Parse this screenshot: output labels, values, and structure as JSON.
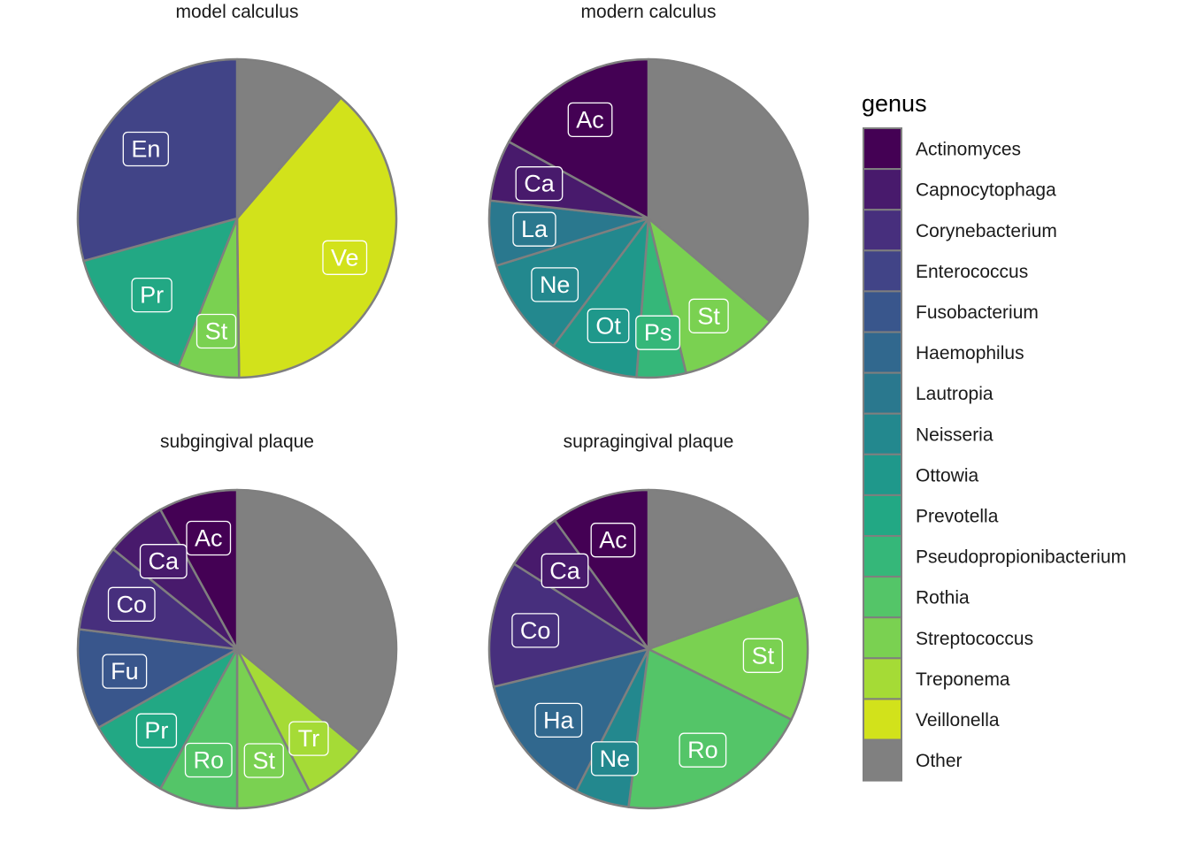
{
  "chart_data": {
    "type": "pie",
    "legend": {
      "title": "genus",
      "placement": "right",
      "entries": [
        {
          "name": "Actinomyces",
          "color": "#440154"
        },
        {
          "name": "Capnocytophaga",
          "color": "#481A6C"
        },
        {
          "name": "Corynebacterium",
          "color": "#472F7D"
        },
        {
          "name": "Enterococcus",
          "color": "#414487"
        },
        {
          "name": "Fusobacterium",
          "color": "#39568C"
        },
        {
          "name": "Haemophilus",
          "color": "#31688E"
        },
        {
          "name": "Lautropia",
          "color": "#2A788E"
        },
        {
          "name": "Neisseria",
          "color": "#23888E"
        },
        {
          "name": "Ottowia",
          "color": "#1F988B"
        },
        {
          "name": "Prevotella",
          "color": "#22A884"
        },
        {
          "name": "Pseudopropionibacterium",
          "color": "#35B779"
        },
        {
          "name": "Rothia",
          "color": "#54C568"
        },
        {
          "name": "Streptococcus",
          "color": "#7AD151"
        },
        {
          "name": "Treponema",
          "color": "#A5DB36"
        },
        {
          "name": "Veillonella",
          "color": "#D2E21B"
        },
        {
          "name": "Other",
          "color": "#808080"
        }
      ]
    },
    "panels": [
      {
        "title": "model  calculus",
        "slices": [
          {
            "genus": "Other",
            "value": 11.3
          },
          {
            "genus": "Veillonella",
            "value": 38.5,
            "label": "Ve"
          },
          {
            "genus": "Streptococcus",
            "value": 6.2,
            "label": "St"
          },
          {
            "genus": "Prevotella",
            "value": 14.7,
            "label": "Pr"
          },
          {
            "genus": "Enterococcus",
            "value": 29.3,
            "label": "En"
          }
        ]
      },
      {
        "title": "modern  calculus",
        "slices": [
          {
            "genus": "Other",
            "value": 36.2
          },
          {
            "genus": "Streptococcus",
            "value": 10.0,
            "label": "St"
          },
          {
            "genus": "Pseudopropionibacterium",
            "value": 5.0,
            "label": "Ps"
          },
          {
            "genus": "Ottowia",
            "value": 9.0,
            "label": "Ot"
          },
          {
            "genus": "Neisseria",
            "value": 10.0,
            "label": "Ne"
          },
          {
            "genus": "Lautropia",
            "value": 6.6,
            "label": "La"
          },
          {
            "genus": "Capnocytophaga",
            "value": 6.2,
            "label": "Ca"
          },
          {
            "genus": "Actinomyces",
            "value": 17.0,
            "label": "Ac"
          }
        ]
      },
      {
        "title": "subgingival  plaque",
        "slices": [
          {
            "genus": "Other",
            "value": 36.0
          },
          {
            "genus": "Treponema",
            "value": 6.5,
            "label": "Tr"
          },
          {
            "genus": "Streptococcus",
            "value": 7.5,
            "label": "St"
          },
          {
            "genus": "Rothia",
            "value": 8.0,
            "label": "Ro"
          },
          {
            "genus": "Prevotella",
            "value": 8.8,
            "label": "Pr"
          },
          {
            "genus": "Fusobacterium",
            "value": 10.2,
            "label": "Fu"
          },
          {
            "genus": "Corynebacterium",
            "value": 8.8,
            "label": "Co"
          },
          {
            "genus": "Capnocytophaga",
            "value": 6.2,
            "label": "Ca"
          },
          {
            "genus": "Actinomyces",
            "value": 8.0,
            "label": "Ac"
          }
        ]
      },
      {
        "title": "supragingival  plaque",
        "slices": [
          {
            "genus": "Other",
            "value": 19.5
          },
          {
            "genus": "Streptococcus",
            "value": 12.8,
            "label": "St"
          },
          {
            "genus": "Rothia",
            "value": 19.7,
            "label": "Ro"
          },
          {
            "genus": "Neisseria",
            "value": 5.5,
            "label": "Ne"
          },
          {
            "genus": "Haemophilus",
            "value": 13.7,
            "label": "Ha"
          },
          {
            "genus": "Corynebacterium",
            "value": 12.8,
            "label": "Co"
          },
          {
            "genus": "Capnocytophaga",
            "value": 6.0,
            "label": "Ca"
          },
          {
            "genus": "Actinomyces",
            "value": 10.0,
            "label": "Ac"
          }
        ]
      }
    ]
  }
}
